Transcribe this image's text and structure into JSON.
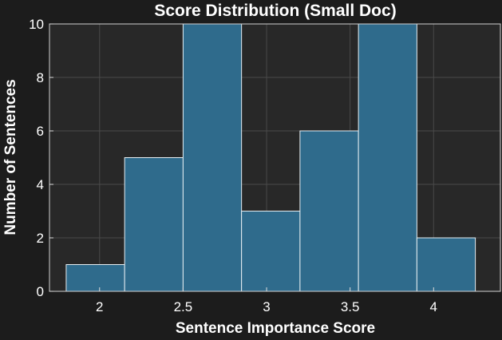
{
  "chart_data": {
    "type": "bar",
    "title": "Score Distribution (Small Doc)",
    "xlabel": "Sentence Importance Score",
    "ylabel": "Number of Sentences",
    "xlim": [
      1.7,
      4.4
    ],
    "ylim": [
      0,
      10
    ],
    "xticks": [
      2,
      2.5,
      3,
      3.5,
      4
    ],
    "xtick_labels": [
      "2",
      "2.5",
      "3",
      "3.5",
      "4"
    ],
    "yticks": [
      0,
      2,
      4,
      6,
      8,
      10
    ],
    "ytick_labels": [
      "0",
      "2",
      "4",
      "6",
      "8",
      "10"
    ],
    "bins": [
      {
        "x0": 1.8,
        "x1": 2.15,
        "count": 1
      },
      {
        "x0": 2.15,
        "x1": 2.5,
        "count": 5
      },
      {
        "x0": 2.5,
        "x1": 2.85,
        "count": 10
      },
      {
        "x0": 2.85,
        "x1": 3.2,
        "count": 3
      },
      {
        "x0": 3.2,
        "x1": 3.55,
        "count": 6
      },
      {
        "x0": 3.55,
        "x1": 3.9,
        "count": 10
      },
      {
        "x0": 3.9,
        "x1": 4.25,
        "count": 2
      }
    ],
    "grid": true,
    "colors": {
      "bar": "#2f6b8c",
      "bar_edge": "#e6eef2",
      "plot_bg": "#282828",
      "page_bg": "#1c1c1c",
      "grid": "#4a4a4a",
      "text": "#ffffff"
    }
  }
}
